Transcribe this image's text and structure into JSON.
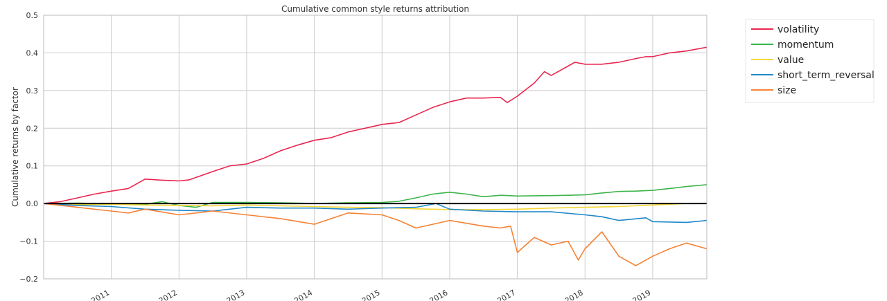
{
  "chart_data": {
    "type": "line",
    "title": "Cumulative common style returns attribution",
    "xlabel": "",
    "ylabel": "Cumulative returns by factor",
    "ylim": [
      -0.2,
      0.5
    ],
    "xlim": [
      2010.0,
      2019.8
    ],
    "y_ticks": [
      -0.2,
      -0.1,
      0.0,
      0.1,
      0.2,
      0.3,
      0.4,
      0.5
    ],
    "y_tick_labels": [
      "−0.2",
      "−0.1",
      "0.0",
      "0.1",
      "0.2",
      "0.3",
      "0.4",
      "0.5"
    ],
    "x_ticks": [
      2011,
      2012,
      2013,
      2014,
      2015,
      2016,
      2017,
      2018,
      2019
    ],
    "x_tick_labels": [
      "2011",
      "2012",
      "2013",
      "2014",
      "2015",
      "2016",
      "2017",
      "2018",
      "2019"
    ],
    "grid": true,
    "legend_position": "outside-top-right",
    "zero_line_color": "#000000",
    "series": [
      {
        "name": "volatility",
        "color": "#e8264f",
        "x": [
          2010.0,
          2010.25,
          2010.5,
          2010.75,
          2011.0,
          2011.25,
          2011.5,
          2011.75,
          2012.0,
          2012.15,
          2012.5,
          2012.75,
          2013.0,
          2013.25,
          2013.5,
          2013.75,
          2014.0,
          2014.25,
          2014.5,
          2014.75,
          2015.0,
          2015.25,
          2015.5,
          2015.75,
          2016.0,
          2016.25,
          2016.5,
          2016.75,
          2016.85,
          2017.0,
          2017.25,
          2017.4,
          2017.5,
          2017.75,
          2017.85,
          2018.0,
          2018.25,
          2018.5,
          2018.75,
          2018.9,
          2019.0,
          2019.25,
          2019.5,
          2019.8
        ],
        "values": [
          0.0,
          0.005,
          0.015,
          0.025,
          0.033,
          0.04,
          0.065,
          0.062,
          0.06,
          0.063,
          0.085,
          0.1,
          0.105,
          0.12,
          0.14,
          0.155,
          0.168,
          0.175,
          0.19,
          0.2,
          0.21,
          0.215,
          0.235,
          0.255,
          0.27,
          0.28,
          0.28,
          0.282,
          0.268,
          0.285,
          0.32,
          0.35,
          0.34,
          0.365,
          0.375,
          0.37,
          0.37,
          0.375,
          0.385,
          0.39,
          0.39,
          0.4,
          0.405,
          0.415
        ]
      },
      {
        "name": "momentum",
        "color": "#3bb44a",
        "x": [
          2010.0,
          2010.5,
          2011.0,
          2011.5,
          2011.75,
          2012.0,
          2012.25,
          2012.5,
          2013.0,
          2013.5,
          2014.0,
          2014.5,
          2015.0,
          2015.25,
          2015.5,
          2015.75,
          2016.0,
          2016.25,
          2016.5,
          2016.75,
          2017.0,
          2017.5,
          2017.75,
          2018.0,
          2018.25,
          2018.5,
          2018.75,
          2019.0,
          2019.25,
          2019.5,
          2019.8
        ],
        "values": [
          0.0,
          0.001,
          0.0,
          -0.002,
          0.005,
          -0.005,
          -0.01,
          0.003,
          0.003,
          0.002,
          0.0,
          0.002,
          0.003,
          0.006,
          0.015,
          0.025,
          0.03,
          0.025,
          0.018,
          0.022,
          0.02,
          0.021,
          0.022,
          0.023,
          0.028,
          0.032,
          0.033,
          0.035,
          0.04,
          0.045,
          0.05
        ]
      },
      {
        "name": "value",
        "color": "#f5d633",
        "x": [
          2010.0,
          2010.5,
          2011.0,
          2011.5,
          2012.0,
          2012.5,
          2013.0,
          2013.5,
          2014.0,
          2014.5,
          2015.0,
          2015.5,
          2016.0,
          2016.5,
          2017.0,
          2017.5,
          2018.0,
          2018.5,
          2019.0,
          2019.5,
          2019.8
        ],
        "values": [
          0.0,
          -0.003,
          -0.002,
          -0.004,
          -0.005,
          -0.006,
          -0.004,
          -0.006,
          -0.008,
          -0.01,
          -0.011,
          -0.014,
          -0.016,
          -0.016,
          -0.015,
          -0.012,
          -0.01,
          -0.008,
          -0.004,
          0.0,
          0.001
        ]
      },
      {
        "name": "short_term_reversal",
        "color": "#1f87c9",
        "x": [
          2010.0,
          2010.5,
          2011.0,
          2011.5,
          2012.0,
          2012.5,
          2013.0,
          2013.5,
          2014.0,
          2014.5,
          2015.0,
          2015.5,
          2015.8,
          2016.0,
          2016.5,
          2017.0,
          2017.5,
          2018.0,
          2018.25,
          2018.5,
          2018.9,
          2019.0,
          2019.5,
          2019.8
        ],
        "values": [
          0.0,
          -0.005,
          -0.008,
          -0.015,
          -0.018,
          -0.02,
          -0.01,
          -0.012,
          -0.012,
          -0.015,
          -0.012,
          -0.01,
          0.0,
          -0.015,
          -0.02,
          -0.022,
          -0.022,
          -0.03,
          -0.035,
          -0.045,
          -0.038,
          -0.048,
          -0.05,
          -0.045
        ]
      },
      {
        "name": "size",
        "color": "#f58233",
        "x": [
          2010.0,
          2010.5,
          2011.0,
          2011.25,
          2011.5,
          2012.0,
          2012.25,
          2012.5,
          2013.0,
          2013.5,
          2014.0,
          2014.25,
          2014.5,
          2015.0,
          2015.25,
          2015.5,
          2015.75,
          2016.0,
          2016.5,
          2016.75,
          2016.9,
          2017.0,
          2017.25,
          2017.5,
          2017.75,
          2017.9,
          2018.0,
          2018.25,
          2018.5,
          2018.75,
          2019.0,
          2019.25,
          2019.5,
          2019.8
        ],
        "values": [
          0.0,
          -0.01,
          -0.02,
          -0.025,
          -0.015,
          -0.03,
          -0.025,
          -0.02,
          -0.03,
          -0.04,
          -0.055,
          -0.04,
          -0.025,
          -0.03,
          -0.045,
          -0.065,
          -0.055,
          -0.045,
          -0.06,
          -0.065,
          -0.06,
          -0.13,
          -0.09,
          -0.11,
          -0.1,
          -0.15,
          -0.12,
          -0.075,
          -0.14,
          -0.165,
          -0.14,
          -0.12,
          -0.105,
          -0.12
        ]
      }
    ]
  }
}
